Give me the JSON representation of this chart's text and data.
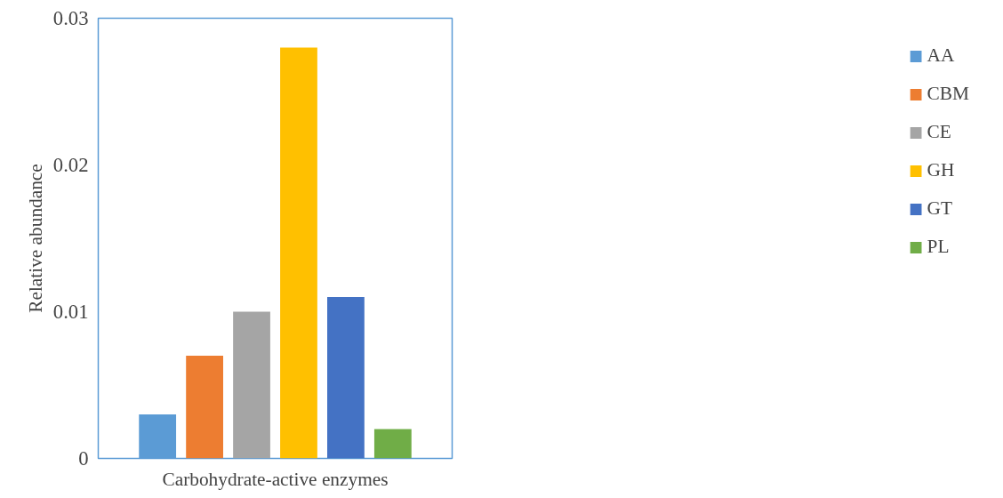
{
  "chart_data": {
    "type": "bar",
    "xlabel": "Carbohydrate-active enzymes",
    "ylabel": "Relative abundance",
    "categories": [
      null
    ],
    "series": [
      {
        "name": "AA",
        "color": "#5b9bd5",
        "values": [
          0.003
        ]
      },
      {
        "name": "CBM",
        "color": "#ed7d31",
        "values": [
          0.007
        ]
      },
      {
        "name": "CE",
        "color": "#a5a5a5",
        "values": [
          0.01
        ]
      },
      {
        "name": "GH",
        "color": "#ffc000",
        "values": [
          0.028
        ]
      },
      {
        "name": "GT",
        "color": "#4472c4",
        "values": [
          0.011
        ]
      },
      {
        "name": "PL",
        "color": "#70ad47",
        "values": [
          0.002
        ]
      }
    ],
    "ylim": [
      0,
      0.03
    ],
    "yticks": [
      0,
      0.01,
      0.02,
      0.03
    ],
    "grid": false,
    "legend": "right"
  }
}
